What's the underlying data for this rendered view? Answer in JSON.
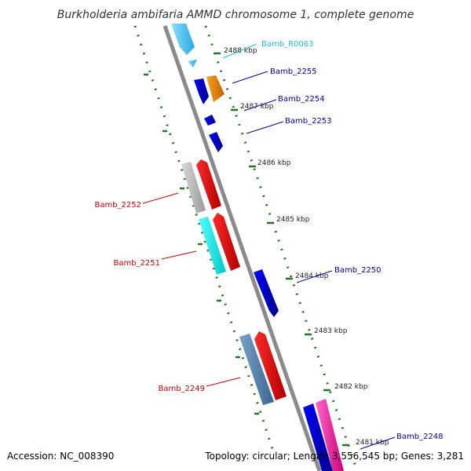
{
  "title": "Burkholderia ambifaria AMMD chromosome 1, complete genome",
  "footer": {
    "accession": "Accession: NC_008390",
    "topology": "Topology: circular; Length: 3,556,545 bp; Genes: 3,281"
  },
  "colors": {
    "backbone": "#8a8a8a",
    "tick": "#1f7a1f",
    "label_forward": "#0000aa",
    "label_reverse": "#cc0000",
    "label_rna": "#22bbee"
  },
  "ticks": [
    {
      "label": "2488 kbp"
    },
    {
      "label": "2487 kbp"
    },
    {
      "label": "2486 kbp"
    },
    {
      "label": "2485 kbp"
    },
    {
      "label": "2484 kbp"
    },
    {
      "label": "2483 kbp"
    },
    {
      "label": "2482 kbp"
    },
    {
      "label": "2481 kbp"
    }
  ],
  "genes": [
    {
      "name": "Bamb_R0063",
      "type": "rna"
    },
    {
      "name": "Bamb_2255",
      "type": "forward"
    },
    {
      "name": "Bamb_2254",
      "type": "forward"
    },
    {
      "name": "Bamb_2253",
      "type": "forward"
    },
    {
      "name": "Bamb_2252",
      "type": "reverse"
    },
    {
      "name": "Bamb_2251",
      "type": "reverse"
    },
    {
      "name": "Bamb_2250",
      "type": "forward"
    },
    {
      "name": "Bamb_2249",
      "type": "reverse"
    },
    {
      "name": "Bamb_2248",
      "type": "forward"
    }
  ]
}
